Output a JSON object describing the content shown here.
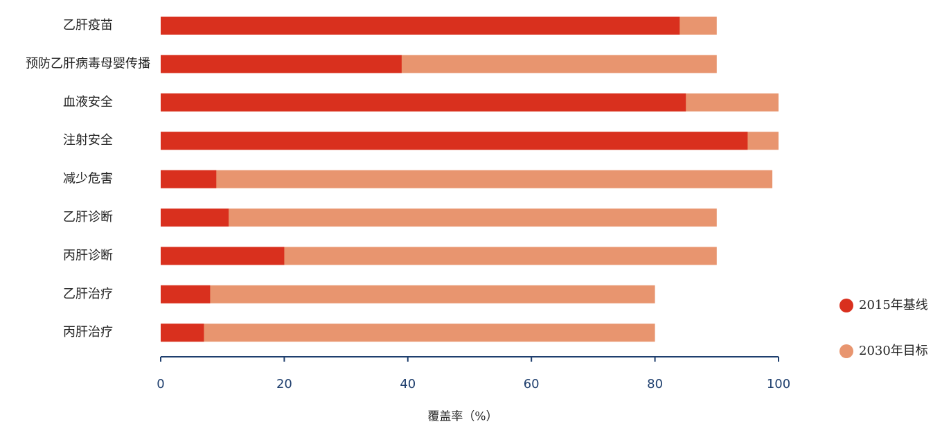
{
  "chart_data": {
    "type": "bar",
    "orientation": "horizontal",
    "barmode": "overlay",
    "categories": [
      "乙肝疫苗",
      "预防乙肝病毒母婴传播",
      "血液安全",
      "注射安全",
      "减少危害",
      "乙肝诊断",
      "丙肝诊断",
      "乙肝治疗",
      "丙肝治疗"
    ],
    "series": [
      {
        "name": "2015年基线",
        "color": "#d9301e",
        "values": [
          84,
          39,
          85,
          95,
          9,
          11,
          20,
          8,
          7
        ]
      },
      {
        "name": "2030年目标",
        "color": "#e8956f",
        "values": [
          90,
          90,
          100,
          100,
          99,
          90,
          90,
          80,
          80
        ]
      }
    ],
    "xlabel": "覆盖率（%）",
    "xlim": [
      0,
      100
    ],
    "xticks": [
      0,
      20,
      40,
      60,
      80,
      100
    ],
    "axis_color": "#1f3f6e",
    "legend": "right"
  }
}
